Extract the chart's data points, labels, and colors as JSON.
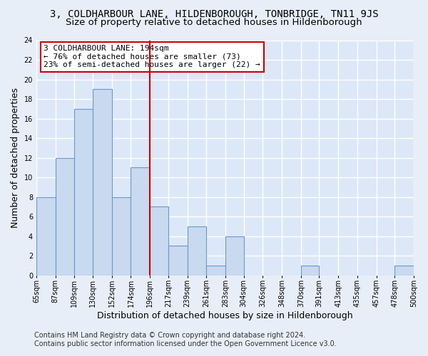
{
  "title": "3, COLDHARBOUR LANE, HILDENBOROUGH, TONBRIDGE, TN11 9JS",
  "subtitle": "Size of property relative to detached houses in Hildenborough",
  "xlabel": "Distribution of detached houses by size in Hildenborough",
  "ylabel": "Number of detached properties",
  "bin_edges": [
    65,
    87,
    109,
    130,
    152,
    174,
    196,
    217,
    239,
    261,
    283,
    304,
    326,
    348,
    370,
    391,
    413,
    435,
    457,
    478,
    500
  ],
  "counts": [
    8,
    12,
    17,
    19,
    8,
    11,
    7,
    3,
    5,
    1,
    4,
    0,
    0,
    0,
    1,
    0,
    0,
    0,
    0,
    1
  ],
  "bar_color": "#c9d9ef",
  "bar_edge_color": "#6699cc",
  "reference_line_x": 196,
  "reference_line_color": "#cc0000",
  "annotation_title": "3 COLDHARBOUR LANE: 194sqm",
  "annotation_line1": "← 76% of detached houses are smaller (73)",
  "annotation_line2": "23% of semi-detached houses are larger (22) →",
  "annotation_box_facecolor": "#ffffff",
  "annotation_box_edgecolor": "#cc0000",
  "ylim": [
    0,
    24
  ],
  "yticks": [
    0,
    2,
    4,
    6,
    8,
    10,
    12,
    14,
    16,
    18,
    20,
    22,
    24
  ],
  "tick_labels": [
    "65sqm",
    "87sqm",
    "109sqm",
    "130sqm",
    "152sqm",
    "174sqm",
    "196sqm",
    "217sqm",
    "239sqm",
    "261sqm",
    "283sqm",
    "304sqm",
    "326sqm",
    "348sqm",
    "370sqm",
    "391sqm",
    "413sqm",
    "435sqm",
    "457sqm",
    "478sqm",
    "500sqm"
  ],
  "footer1": "Contains HM Land Registry data © Crown copyright and database right 2024.",
  "footer2": "Contains public sector information licensed under the Open Government Licence v3.0.",
  "background_color": "#e8eef8",
  "plot_bg_color": "#dce8f8",
  "grid_color": "#ffffff",
  "title_fontsize": 10,
  "subtitle_fontsize": 9.5,
  "axis_label_fontsize": 9,
  "tick_fontsize": 7,
  "annotation_fontsize": 8,
  "footer_fontsize": 7
}
